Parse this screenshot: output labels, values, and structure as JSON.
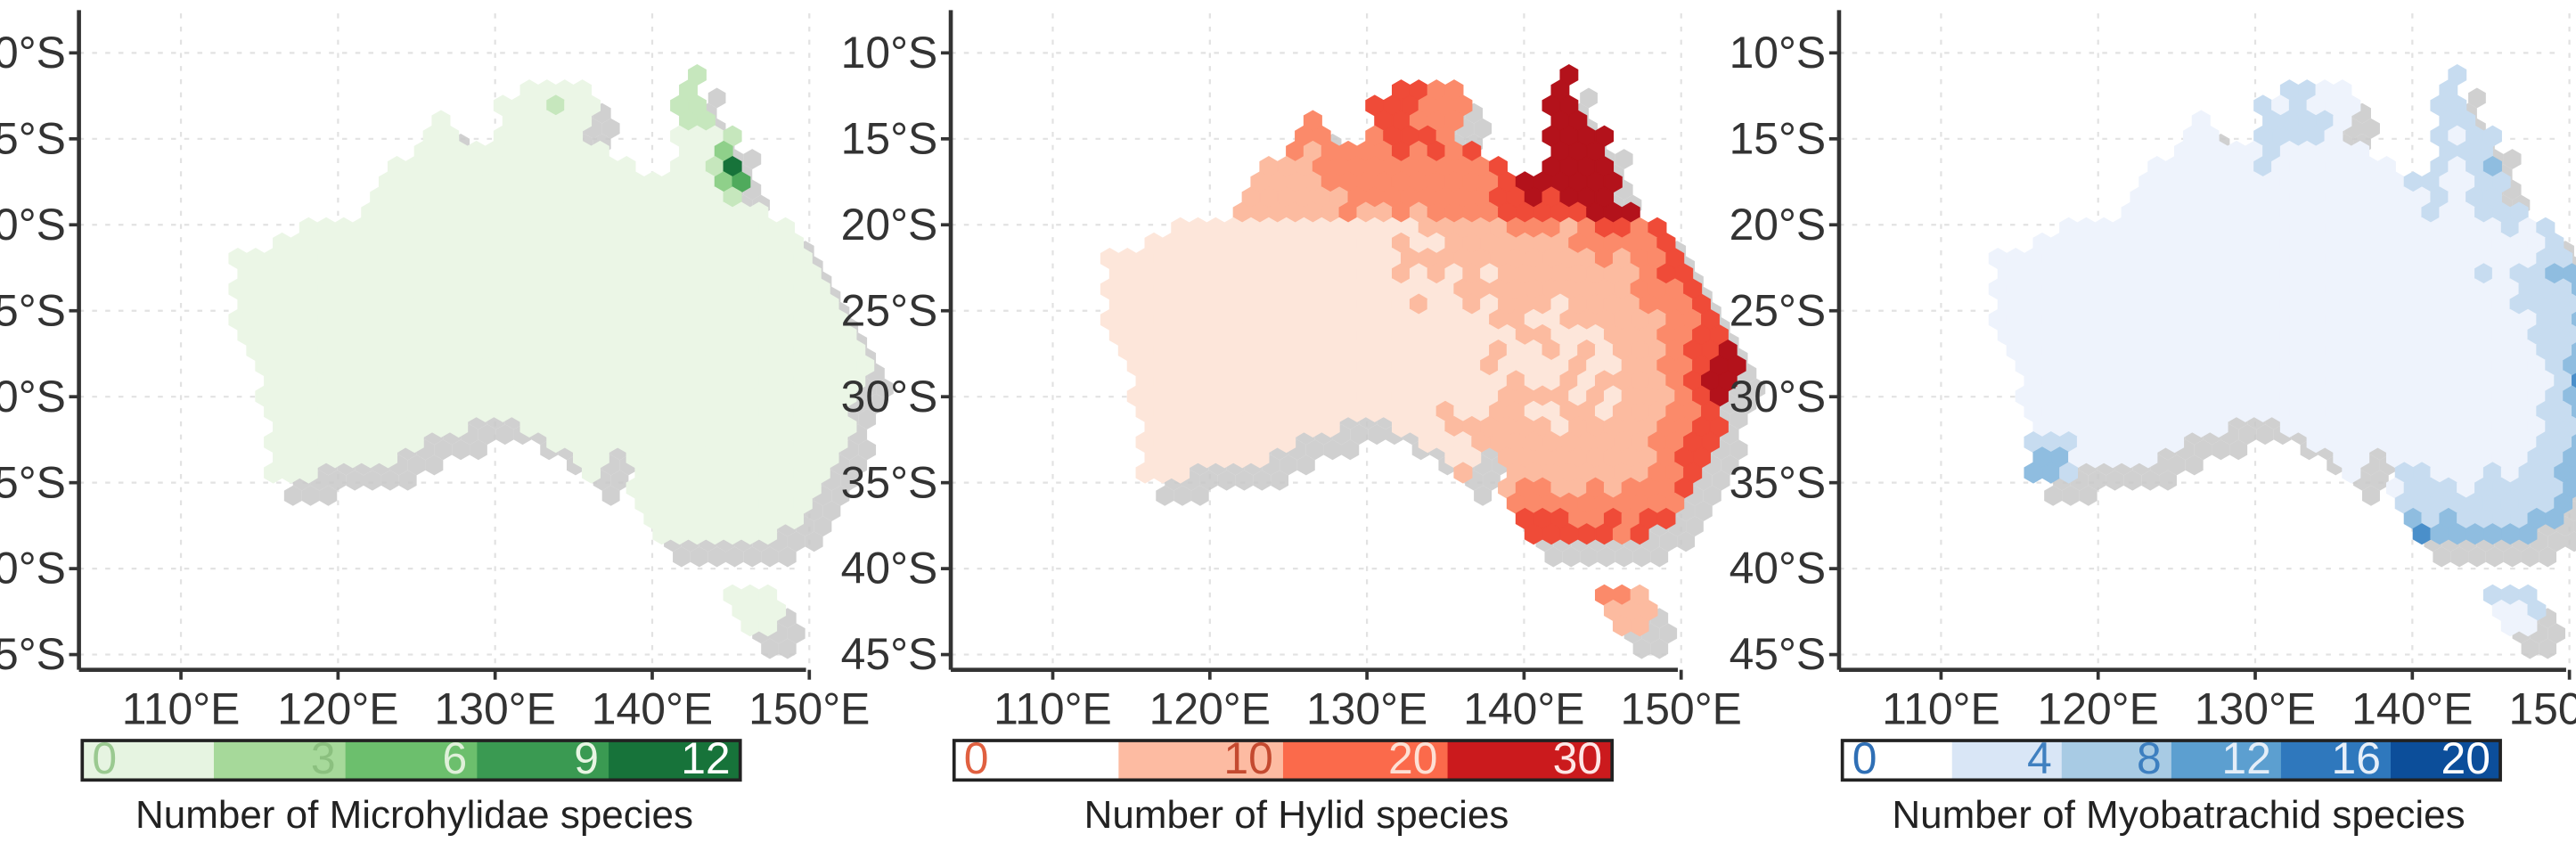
{
  "panels": [
    {
      "id": "microhylidae",
      "caption": "Number of Microhylidae species",
      "legend_ticks": [
        "0",
        "3",
        "6",
        "9",
        "12"
      ],
      "legend_colors": [
        "#e6f4e1",
        "#a6d99a",
        "#6cbf6d",
        "#3a9a52",
        "#17733a"
      ],
      "legend_text_colors": [
        "#9ac990",
        "#8bc07f",
        "#e0f0da",
        "#e8f5e3",
        "#ffffff"
      ],
      "palette": [
        "#ebf6e6",
        "#c6e7bd",
        "#8fd08a",
        "#4faa5c",
        "#17733a"
      ],
      "max_value": 12
    },
    {
      "id": "hylid",
      "caption": "Number of Hylid species",
      "legend_ticks": [
        "0",
        "10",
        "20",
        "30"
      ],
      "legend_colors": [
        "#ffffff",
        "#fdbba2",
        "#fb6a4b",
        "#cb1a1d"
      ],
      "legend_text_colors": [
        "#e06040",
        "#c44a30",
        "#fde0d4",
        "#ffe6e6"
      ],
      "palette": [
        "#fde6da",
        "#fcbba0",
        "#fb8a6a",
        "#ef4b38",
        "#b3121b"
      ],
      "max_value": 30
    },
    {
      "id": "myobatrachid",
      "caption": "Number of Myobatrachid species",
      "legend_ticks": [
        "0",
        "4",
        "8",
        "12",
        "16",
        "20"
      ],
      "legend_colors": [
        "#ffffff",
        "#d9e6f6",
        "#a8cbe4",
        "#5c9fd0",
        "#2f78bd",
        "#0c4e9a"
      ],
      "legend_text_colors": [
        "#2f6fb5",
        "#4080c0",
        "#3d7fc0",
        "#e4eef8",
        "#e6eff9",
        "#ffffff"
      ],
      "palette": [
        "#eef3fc",
        "#c7dcf0",
        "#8fbde0",
        "#4a8fca",
        "#0c4e9a"
      ],
      "max_value": 20
    }
  ],
  "axes": {
    "y_ticks": [
      "10°S",
      "15°S",
      "20°S",
      "25°S",
      "30°S",
      "35°S",
      "40°S",
      "45°S"
    ],
    "x_ticks": [
      "110°E",
      "120°E",
      "130°E",
      "140°E",
      "150°E"
    ]
  },
  "colors": {
    "shadow": "#c8c8c8",
    "grid": "#e2e2e2",
    "axis": "#333333"
  }
}
